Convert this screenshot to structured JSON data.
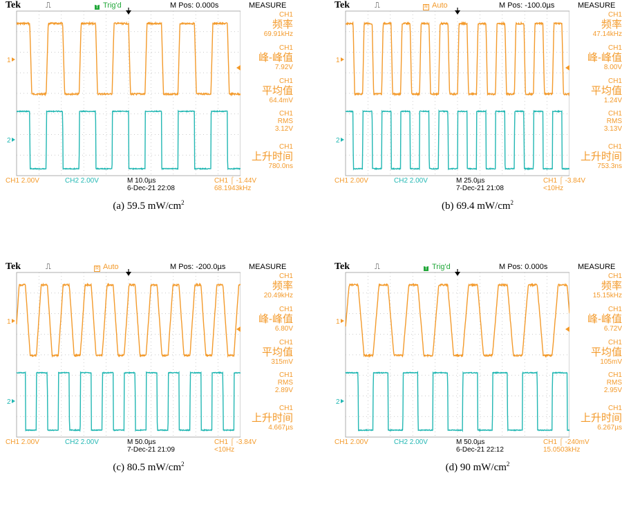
{
  "colors": {
    "ch1": "#f39a2b",
    "ch2": "#22b7b3",
    "trig_green": "#22a83a"
  },
  "panels": [
    {
      "brand": "Tek",
      "trigger_icon": "⎍",
      "status": "Trig'd",
      "status_type": "trigd",
      "mpos": "M Pos: 0.000s",
      "measure_title": "MEASURE",
      "measures": [
        {
          "ch": "CH1",
          "name": "频率",
          "value": "69.91kHz"
        },
        {
          "ch": "CH1",
          "name": "峰-峰值",
          "value": "7.92V"
        },
        {
          "ch": "CH1",
          "name": "平均值",
          "value": "64.4mV"
        },
        {
          "ch": "CH1",
          "name": "RMS",
          "value": "3.12V"
        },
        {
          "ch": "CH1",
          "name": "上升时间",
          "value": "780.0ns"
        }
      ],
      "ch1_scale": "CH1  2.00V",
      "ch2_scale": "CH2  2.00V",
      "timebase": "M 10.0µs",
      "datetime": "6-Dec-21 22:08",
      "trig_info": "CH1 ⌠ -1.44V",
      "trig_freq": "68.1943kHz",
      "ch1_marker": "1",
      "ch2_marker": "2",
      "caption_value": "(a) 59.5 mW/cm",
      "caption_sup": "2",
      "wave": {
        "periods": 6.8,
        "phase": 0.1,
        "rise": 0.06
      }
    },
    {
      "brand": "Tek",
      "trigger_icon": "⎍",
      "status": "Auto",
      "status_type": "auto",
      "mpos": "M Pos: -100.0µs",
      "measure_title": "MEASURE",
      "measures": [
        {
          "ch": "CH1",
          "name": "频率",
          "value": "47.14kHz"
        },
        {
          "ch": "CH1",
          "name": "峰-峰值",
          "value": "8.00V"
        },
        {
          "ch": "CH1",
          "name": "平均值",
          "value": "1.24V"
        },
        {
          "ch": "CH1",
          "name": "RMS",
          "value": "3.13V"
        },
        {
          "ch": "CH1",
          "name": "上升时间",
          "value": "753.3ns"
        }
      ],
      "ch1_scale": "CH1  2.00V",
      "ch2_scale": "CH2  2.00V",
      "timebase": "M 25.0µs",
      "datetime": "7-Dec-21 21:08",
      "trig_info": "CH1 ⌠ -3.84V",
      "trig_freq": "<10Hz",
      "ch1_marker": "1",
      "ch2_marker": "2",
      "caption_value": "(b) 69.4 mW/cm",
      "caption_sup": "2",
      "wave": {
        "periods": 11.8,
        "phase": 0.1,
        "rise": 0.08
      }
    },
    {
      "brand": "Tek",
      "trigger_icon": "⎍",
      "status": "Auto",
      "status_type": "auto",
      "mpos": "M Pos: -200.0µs",
      "measure_title": "MEASURE",
      "measures": [
        {
          "ch": "CH1",
          "name": "频率",
          "value": "20.49kHz"
        },
        {
          "ch": "CH1",
          "name": "峰-峰值",
          "value": "6.80V"
        },
        {
          "ch": "CH1",
          "name": "平均值",
          "value": "315mV"
        },
        {
          "ch": "CH1",
          "name": "RMS",
          "value": "2.89V"
        },
        {
          "ch": "CH1",
          "name": "上升时间",
          "value": "4.667µs"
        }
      ],
      "ch1_scale": "CH1  2.00V",
      "ch2_scale": "CH2  2.00V",
      "timebase": "M 50.0µs",
      "datetime": "7-Dec-21 21:09",
      "trig_info": "CH1 ⌠ -3.84V",
      "trig_freq": "<10Hz",
      "ch1_marker": "1",
      "ch2_marker": "2",
      "caption_value": "(c) 80.5 mW/cm",
      "caption_sup": "2",
      "wave": {
        "periods": 10.2,
        "phase": 0.1,
        "rise": 0.22
      }
    },
    {
      "brand": "Tek",
      "trigger_icon": "⎍",
      "status": "Trig'd",
      "status_type": "trigd",
      "mpos": "M Pos: 0.000s",
      "measure_title": "MEASURE",
      "measures": [
        {
          "ch": "CH1",
          "name": "频率",
          "value": "15.15kHz"
        },
        {
          "ch": "CH1",
          "name": "峰-峰值",
          "value": "6.72V"
        },
        {
          "ch": "CH1",
          "name": "平均值",
          "value": "105mV"
        },
        {
          "ch": "CH1",
          "name": "RMS",
          "value": "2.95V"
        },
        {
          "ch": "CH1",
          "name": "上升时间",
          "value": "6.267µs"
        }
      ],
      "ch1_scale": "CH1  2.00V",
      "ch2_scale": "CH2  2.00V",
      "timebase": "M 50.0µs",
      "datetime": "6-Dec-21 22:12",
      "trig_info": "CH1 ⌠ -240mV",
      "trig_freq": "15.0503kHz",
      "ch1_marker": "1",
      "ch2_marker": "2",
      "caption_value": "(d) 90 mW/cm",
      "caption_sup": "2",
      "wave": {
        "periods": 7.5,
        "phase": 0.08,
        "rise": 0.2
      }
    }
  ]
}
